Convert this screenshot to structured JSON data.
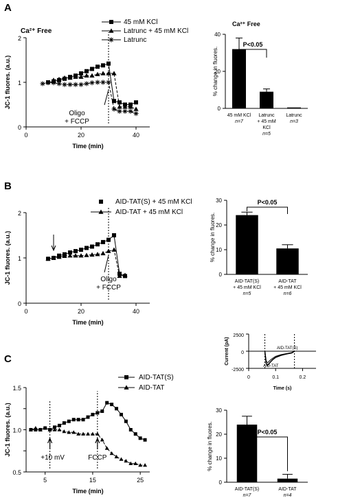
{
  "chart_data": [
    {
      "id": "A-left",
      "panel_label": "A",
      "type": "line",
      "annotation": "Ca²⁺ Free",
      "xlabel": "Time (min)",
      "ylabel": "JC-1 fluores. (a.u.)",
      "xlim": [
        0,
        45
      ],
      "ylim": [
        0,
        2
      ],
      "xticks": [
        0,
        20,
        40
      ],
      "yticks": [
        0,
        1,
        2
      ],
      "legend": [
        "45 mM KCl",
        "Latrunc + 45 mM KCl",
        "Latrunc"
      ],
      "event_labels": [
        "Oligo",
        "+ FCCP"
      ],
      "series": [
        {
          "name": "45 mM KCl",
          "marker": "square",
          "x": [
            8,
            10,
            12,
            14,
            16,
            18,
            20,
            22,
            24,
            26,
            28,
            30,
            32,
            34,
            36,
            38,
            40
          ],
          "y": [
            1.0,
            1.02,
            1.05,
            1.08,
            1.12,
            1.15,
            1.2,
            1.25,
            1.3,
            1.35,
            1.38,
            1.42,
            0.58,
            0.55,
            0.5,
            0.5,
            0.55
          ]
        },
        {
          "name": "Latrunc + 45 mM KCl",
          "marker": "triangle",
          "x": [
            10,
            12,
            14,
            16,
            18,
            20,
            22,
            24,
            26,
            28,
            30,
            32,
            34,
            36,
            38,
            40
          ],
          "y": [
            1.05,
            1.07,
            1.1,
            1.1,
            1.12,
            1.12,
            1.15,
            1.15,
            1.18,
            1.2,
            1.2,
            1.2,
            0.45,
            0.45,
            0.45,
            0.4
          ]
        },
        {
          "name": "Latrunc",
          "marker": "star",
          "x": [
            6,
            8,
            10,
            12,
            14,
            16,
            18,
            20,
            22,
            24,
            26,
            28,
            30,
            32,
            34,
            36,
            38,
            40
          ],
          "y": [
            0.97,
            0.99,
            0.99,
            0.97,
            0.95,
            0.95,
            0.95,
            0.95,
            0.97,
            0.99,
            1.0,
            1.0,
            1.0,
            0.4,
            0.35,
            0.35,
            0.35,
            0.3
          ]
        }
      ]
    },
    {
      "id": "A-right",
      "type": "bar",
      "annotation": "Ca²⁺ Free",
      "ylabel": "% change in fluores.",
      "ylim": [
        0,
        40
      ],
      "yticks": [
        0,
        20,
        40
      ],
      "categories": [
        "45 mM KCl",
        "Latrunc + 45 mM KCl",
        "Latrunc"
      ],
      "n_labels": [
        "n=7",
        "n=5",
        "n=3"
      ],
      "values": [
        32,
        9,
        0.5
      ],
      "errors": [
        6,
        1.5,
        0
      ],
      "significance": "P<0.05"
    },
    {
      "id": "B-left",
      "panel_label": "B",
      "type": "line",
      "xlabel": "Time (min)",
      "ylabel": "JC-1 fluores. (a.u.)",
      "xlim": [
        0,
        45
      ],
      "ylim": [
        0,
        2
      ],
      "xticks": [
        0,
        20,
        40
      ],
      "yticks": [
        0,
        1,
        2
      ],
      "legend": [
        "AID-TAT(S) + 45 mM KCl",
        "AID-TAT + 45 mM KCl"
      ],
      "event_labels": [
        "Oligo",
        "+ FCCP"
      ],
      "series": [
        {
          "name": "AID-TAT(S) + 45 mM KCl",
          "marker": "square",
          "x": [
            8,
            10,
            12,
            14,
            16,
            18,
            20,
            22,
            24,
            26,
            28,
            30,
            32,
            34,
            36
          ],
          "y": [
            0.98,
            1.0,
            1.05,
            1.08,
            1.12,
            1.15,
            1.18,
            1.22,
            1.25,
            1.3,
            1.35,
            1.4,
            1.5,
            0.65,
            0.6
          ]
        },
        {
          "name": "AID-TAT + 45 mM KCl",
          "marker": "triangle",
          "x": [
            8,
            10,
            12,
            14,
            16,
            18,
            20,
            22,
            24,
            26,
            28,
            30,
            32,
            34,
            36
          ],
          "y": [
            0.98,
            1.0,
            1.02,
            1.04,
            1.05,
            1.05,
            1.05,
            1.06,
            1.07,
            1.08,
            1.1,
            1.15,
            1.18,
            0.6,
            0.62
          ]
        }
      ]
    },
    {
      "id": "B-right",
      "type": "bar",
      "ylabel": "% change in fluores.",
      "ylim": [
        0,
        30
      ],
      "yticks": [
        0,
        10,
        20,
        30
      ],
      "categories": [
        "AID-TAT(S) + 45 mM KCl",
        "AID-TAT + 45 mM KCl"
      ],
      "n_labels": [
        "n=5",
        "n=6"
      ],
      "values": [
        24,
        10.5
      ],
      "errors": [
        1.2,
        1.5
      ],
      "significance": "P<0.05"
    },
    {
      "id": "C-left",
      "panel_label": "C",
      "type": "line",
      "xlabel": "Time (min)",
      "ylabel": "JC-1 fluores. (a.u.)",
      "xlim": [
        1,
        27
      ],
      "ylim": [
        0.5,
        1.5
      ],
      "xticks": [
        5,
        15,
        25
      ],
      "yticks": [
        0.5,
        0.75,
        1.0,
        1.25,
        1.5
      ],
      "legend": [
        "AID-TAT(S)",
        "AID-TAT"
      ],
      "event_labels": [
        "+10 mV",
        "FCCP"
      ],
      "series": [
        {
          "name": "AID-TAT(S)",
          "marker": "square",
          "x": [
            2,
            3,
            4,
            5,
            6,
            7,
            8,
            9,
            10,
            11,
            12,
            13,
            14,
            15,
            16,
            17,
            18,
            19,
            20,
            21,
            22,
            23,
            24,
            25,
            26
          ],
          "y": [
            1.0,
            1.0,
            1.0,
            1.02,
            1.0,
            1.03,
            1.05,
            1.08,
            1.1,
            1.12,
            1.12,
            1.12,
            1.15,
            1.18,
            1.2,
            1.22,
            1.32,
            1.3,
            1.25,
            1.18,
            1.1,
            1.0,
            0.95,
            0.9,
            0.88
          ]
        },
        {
          "name": "AID-TAT",
          "marker": "triangle",
          "x": [
            2,
            3,
            4,
            5,
            6,
            7,
            8,
            9,
            10,
            11,
            12,
            13,
            14,
            15,
            16,
            17,
            18,
            19,
            20,
            21,
            22,
            23,
            24,
            25,
            26
          ],
          "y": [
            1.0,
            1.02,
            1.0,
            1.02,
            1.0,
            1.0,
            1.0,
            0.98,
            0.97,
            0.97,
            0.95,
            0.95,
            0.95,
            0.95,
            0.95,
            0.88,
            0.78,
            0.72,
            0.68,
            0.65,
            0.63,
            0.6,
            0.6,
            0.58,
            0.58
          ]
        }
      ]
    },
    {
      "id": "C-inset",
      "type": "line",
      "xlabel": "Time (s)",
      "ylabel": "Current (pA)",
      "xlim": [
        0,
        0.25
      ],
      "ylim": [
        -2500,
        2500
      ],
      "xticks": [
        0.0,
        0.1,
        0.2
      ],
      "yticks": [
        -2500,
        0,
        2500
      ],
      "trace_labels": [
        "AID-TAT(S)",
        "AID-TAT"
      ],
      "series": [
        {
          "name": "AID-TAT(S)",
          "x": [
            0.06,
            0.065,
            0.07,
            0.08,
            0.09,
            0.1,
            0.12,
            0.14,
            0.16,
            0.17
          ],
          "y": [
            0,
            -1800,
            -2100,
            -1600,
            -1200,
            -900,
            -600,
            -400,
            -250,
            0
          ]
        },
        {
          "name": "AID-TAT",
          "x": [
            0.06,
            0.065,
            0.07,
            0.08,
            0.09,
            0.1,
            0.12,
            0.14,
            0.16,
            0.17
          ],
          "y": [
            0,
            -1400,
            -1700,
            -1300,
            -1000,
            -750,
            -500,
            -350,
            -200,
            0
          ]
        }
      ]
    },
    {
      "id": "C-right",
      "type": "bar",
      "ylabel": "% change in fluores.",
      "ylim": [
        0,
        30
      ],
      "yticks": [
        0,
        10,
        20,
        30
      ],
      "categories": [
        "AID-TAT(S)",
        "AID-TAT"
      ],
      "n_labels": [
        "n=7",
        "n=4"
      ],
      "values": [
        24,
        1.5
      ],
      "errors": [
        3.5,
        1.8
      ],
      "significance": "P<0.05"
    }
  ]
}
